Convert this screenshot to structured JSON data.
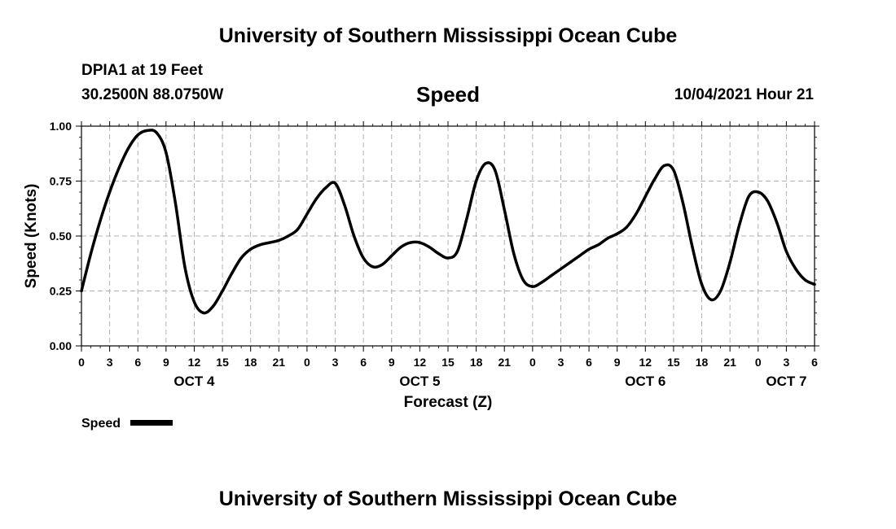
{
  "header": {
    "title": "University of Southern Mississippi Ocean Cube",
    "station": "DPIA1 at 19 Feet",
    "location": "30.2500N  88.0750W",
    "plot_title": "Speed",
    "datetime": "10/04/2021 Hour 21"
  },
  "footer": {
    "title": "University of Southern Mississippi Ocean Cube"
  },
  "legend": {
    "label": "Speed"
  },
  "colors": {
    "line": "#000000",
    "grid": "#b0b0b0",
    "background": "#ffffff"
  },
  "chart_data": {
    "type": "line",
    "title": "Speed",
    "xlabel": "Forecast (Z)",
    "ylabel": "Speed (Knots)",
    "xlim": [
      0,
      78
    ],
    "ylim": [
      0,
      1.0
    ],
    "yticks": [
      0,
      0.25,
      0.5,
      0.75,
      1.0
    ],
    "ytick_labels": [
      "0.00",
      "0.25",
      "0.50",
      "0.75",
      "1.00"
    ],
    "xticks": [
      0,
      3,
      6,
      9,
      12,
      15,
      18,
      21,
      24,
      27,
      30,
      33,
      36,
      39,
      42,
      45,
      48,
      51,
      54,
      57,
      60,
      63,
      66,
      69,
      72,
      75,
      78
    ],
    "xtick_labels": [
      "0",
      "3",
      "6",
      "9",
      "12",
      "15",
      "18",
      "21",
      "0",
      "3",
      "6",
      "9",
      "12",
      "15",
      "18",
      "21",
      "0",
      "3",
      "6",
      "9",
      "12",
      "15",
      "18",
      "21",
      "0",
      "3",
      "6"
    ],
    "day_labels": [
      {
        "label": "OCT 4",
        "x": 12
      },
      {
        "label": "OCT 5",
        "x": 36
      },
      {
        "label": "OCT 6",
        "x": 60
      },
      {
        "label": "OCT 7",
        "x": 75
      }
    ],
    "grid": true,
    "legend_position": "bottom-left",
    "series": [
      {
        "name": "Speed",
        "x": [
          0,
          1,
          2,
          3,
          4,
          5,
          6,
          7,
          8,
          9,
          10,
          11,
          12,
          13,
          14,
          15,
          16,
          17,
          18,
          19,
          20,
          21,
          22,
          23,
          24,
          25,
          26,
          27,
          28,
          29,
          30,
          31,
          32,
          33,
          34,
          35,
          36,
          37,
          38,
          39,
          40,
          41,
          42,
          43,
          44,
          45,
          46,
          47,
          48,
          49,
          50,
          51,
          52,
          53,
          54,
          55,
          56,
          57,
          58,
          59,
          60,
          61,
          62,
          63,
          64,
          65,
          66,
          67,
          68,
          69,
          70,
          71,
          72,
          73,
          74,
          75,
          76,
          77,
          78
        ],
        "values": [
          0.25,
          0.42,
          0.57,
          0.7,
          0.81,
          0.9,
          0.96,
          0.98,
          0.97,
          0.88,
          0.65,
          0.36,
          0.2,
          0.15,
          0.18,
          0.25,
          0.33,
          0.4,
          0.44,
          0.46,
          0.47,
          0.48,
          0.5,
          0.53,
          0.6,
          0.67,
          0.72,
          0.74,
          0.64,
          0.5,
          0.4,
          0.36,
          0.37,
          0.41,
          0.45,
          0.47,
          0.47,
          0.45,
          0.42,
          0.4,
          0.43,
          0.58,
          0.75,
          0.83,
          0.8,
          0.62,
          0.42,
          0.3,
          0.27,
          0.29,
          0.32,
          0.35,
          0.38,
          0.41,
          0.44,
          0.46,
          0.49,
          0.51,
          0.54,
          0.6,
          0.68,
          0.76,
          0.82,
          0.8,
          0.65,
          0.45,
          0.28,
          0.21,
          0.25,
          0.38,
          0.55,
          0.68,
          0.7,
          0.66,
          0.56,
          0.43,
          0.35,
          0.3,
          0.28
        ]
      }
    ]
  }
}
